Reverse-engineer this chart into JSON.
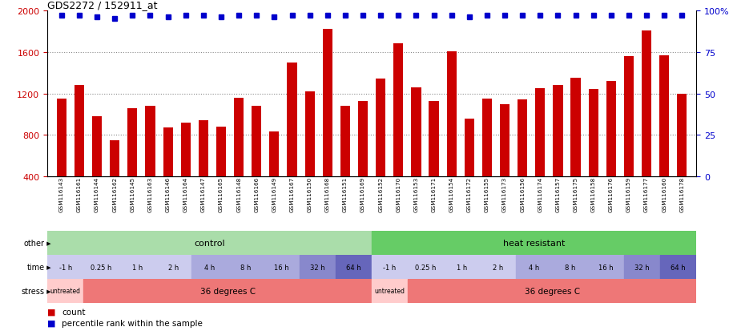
{
  "title": "GDS2272 / 152911_at",
  "samples": [
    "GSM116143",
    "GSM116161",
    "GSM116144",
    "GSM116162",
    "GSM116145",
    "GSM116163",
    "GSM116146",
    "GSM116164",
    "GSM116147",
    "GSM116165",
    "GSM116148",
    "GSM116166",
    "GSM116149",
    "GSM116167",
    "GSM116150",
    "GSM116168",
    "GSM116151",
    "GSM116169",
    "GSM116152",
    "GSM116170",
    "GSM116153",
    "GSM116171",
    "GSM116154",
    "GSM116172",
    "GSM116155",
    "GSM116173",
    "GSM116156",
    "GSM116174",
    "GSM116157",
    "GSM116175",
    "GSM116158",
    "GSM116176",
    "GSM116159",
    "GSM116177",
    "GSM116160",
    "GSM116178"
  ],
  "bar_values": [
    1150,
    1280,
    980,
    750,
    1060,
    1080,
    870,
    920,
    940,
    880,
    1160,
    1080,
    830,
    1500,
    1220,
    1820,
    1080,
    1130,
    1340,
    1680,
    1260,
    1130,
    1610,
    960,
    1150,
    1100,
    1140,
    1250,
    1280,
    1350,
    1240,
    1320,
    1560,
    1810,
    1570,
    1200
  ],
  "percentile_values": [
    97,
    97,
    96,
    95,
    97,
    97,
    96,
    97,
    97,
    96,
    97,
    97,
    96,
    97,
    97,
    97,
    97,
    97,
    97,
    97,
    97,
    97,
    97,
    96,
    97,
    97,
    97,
    97,
    97,
    97,
    97,
    97,
    97,
    97,
    97,
    97
  ],
  "bar_color": "#cc0000",
  "percentile_color": "#0000cc",
  "ylim_left": [
    400,
    2000
  ],
  "ylim_right": [
    0,
    100
  ],
  "yticks_left": [
    400,
    800,
    1200,
    1600,
    2000
  ],
  "yticks_right": [
    0,
    25,
    50,
    75,
    100
  ],
  "grid_values": [
    800,
    1200,
    1600
  ],
  "row_other_label": "other",
  "row_time_label": "time",
  "row_stress_label": "stress",
  "control_label": "control",
  "heat_resistant_label": "heat resistant",
  "control_color": "#aaddaa",
  "heat_resistant_color": "#66cc66",
  "time_labels_control": [
    "-1 h",
    "0.25 h",
    "1 h",
    "2 h",
    "4 h",
    "8 h",
    "16 h",
    "32 h",
    "64 h"
  ],
  "time_labels_heat": [
    "-1 h",
    "0.25 h",
    "1 h",
    "2 h",
    "4 h",
    "8 h",
    "16 h",
    "32 h",
    "64 h"
  ],
  "time_colors_control": [
    "#ccccee",
    "#ccccee",
    "#ccccee",
    "#ccccee",
    "#aaaadd",
    "#aaaadd",
    "#aaaadd",
    "#8888cc",
    "#6666bb"
  ],
  "time_colors_heat": [
    "#ccccee",
    "#ccccee",
    "#ccccee",
    "#ccccee",
    "#aaaadd",
    "#aaaadd",
    "#aaaadd",
    "#8888cc",
    "#6666bb"
  ],
  "stress_untreated_color": "#ffcccc",
  "stress_36_color": "#ee7777",
  "legend_count_color": "#cc0000",
  "legend_pct_color": "#0000cc",
  "n_control": 18,
  "n_heat": 18,
  "time_counts_control": [
    2,
    2,
    2,
    2,
    2,
    2,
    2,
    2,
    2
  ],
  "time_counts_heat": [
    2,
    2,
    2,
    2,
    2,
    2,
    2,
    2,
    2
  ],
  "background_color": "#ffffff"
}
